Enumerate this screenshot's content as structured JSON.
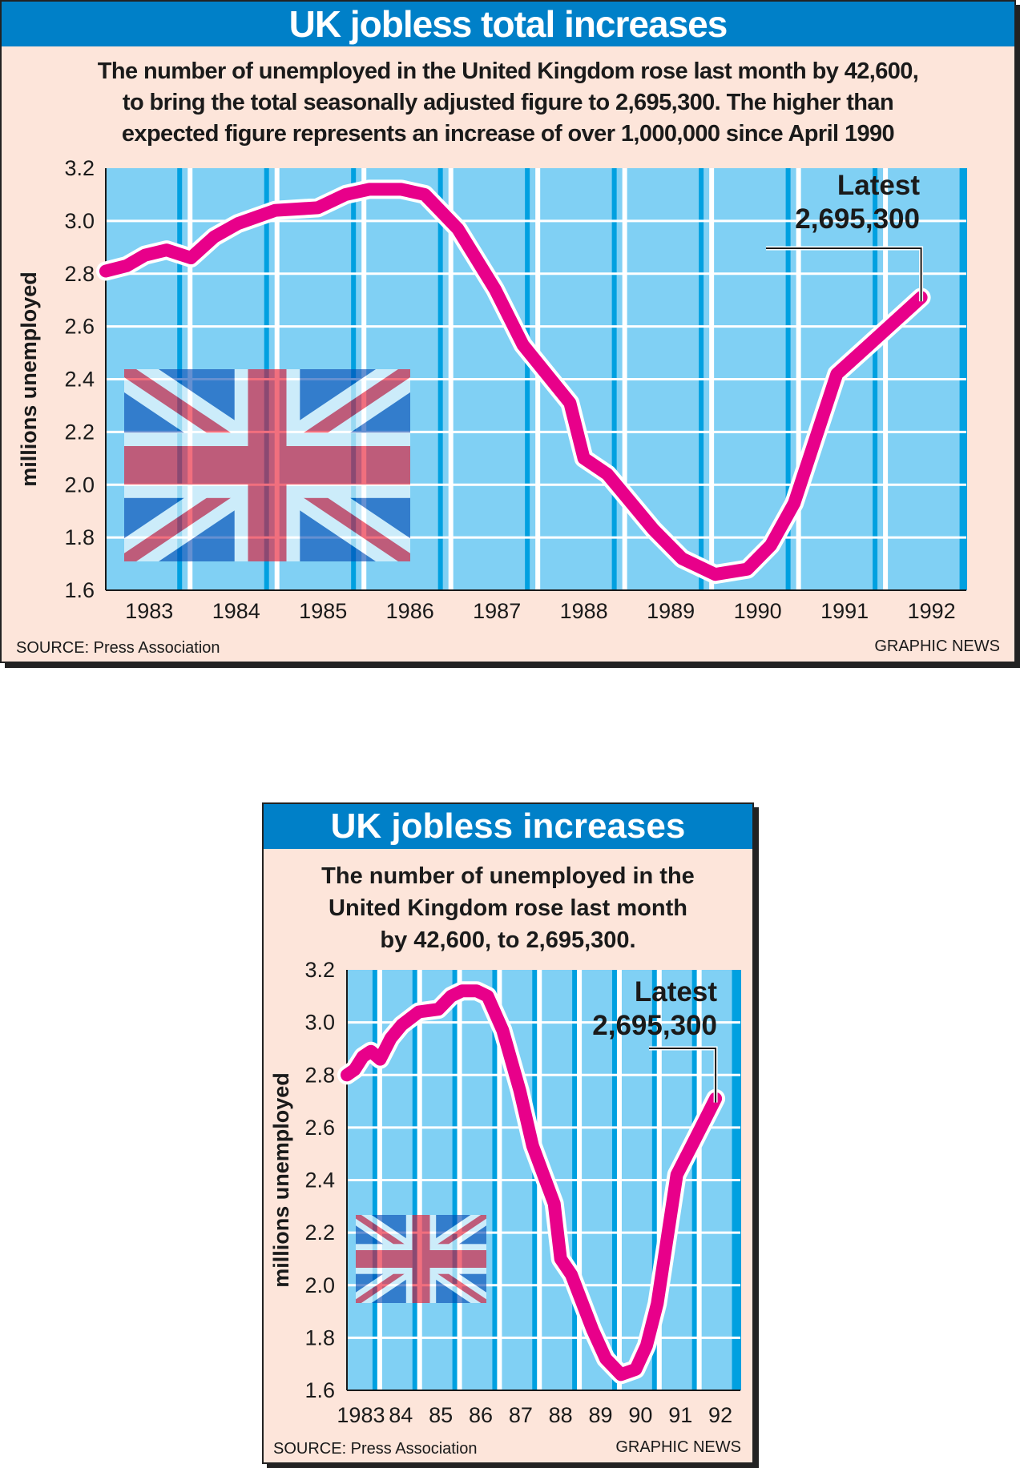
{
  "colors": {
    "background": "#fde5da",
    "title_bar": "#0080c8",
    "plot": "#80d0f4",
    "grid_dark": "#00a0e0",
    "grid_light": "#ffffff",
    "line": "#e8008a",
    "text": "#1a1a1a"
  },
  "charts": [
    {
      "title": "UK jobless total increases",
      "subtitle": [
        "The number of unemployed in the United Kingdom rose last month by 42,600,",
        "to bring the total seasonally adjusted figure to 2,695,300. The higher than",
        "expected figure represents an increase of over 1,000,000 since April 1990"
      ],
      "source": "SOURCE: Press Association",
      "credit": "GRAPHIC NEWS",
      "annotation": [
        "Latest",
        "2,695,300"
      ]
    },
    {
      "title": "UK jobless increases",
      "subtitle": [
        "The number of unemployed in the",
        "United Kingdom rose last month",
        "by 42,600, to 2,695,300."
      ],
      "source": "SOURCE: Press Association",
      "credit": "GRAPHIC NEWS",
      "annotation": [
        "Latest",
        "2,695,300"
      ]
    }
  ],
  "chart_data": [
    {
      "type": "line",
      "title": "UK jobless total increases",
      "ylabel": "millions unemployed",
      "xlabel": "",
      "ylim": [
        1.6,
        3.2
      ],
      "xlim": [
        1982.5,
        1992.4
      ],
      "yticks": [
        "1.6",
        "1.8",
        "2.0",
        "2.2",
        "2.4",
        "2.6",
        "2.8",
        "3.0",
        "3.2"
      ],
      "xticks": [
        {
          "x": 1983,
          "label": "1983"
        },
        {
          "x": 1984,
          "label": "1984"
        },
        {
          "x": 1985,
          "label": "1985"
        },
        {
          "x": 1986,
          "label": "1986"
        },
        {
          "x": 1987,
          "label": "1987"
        },
        {
          "x": 1988,
          "label": "1988"
        },
        {
          "x": 1989,
          "label": "1989"
        },
        {
          "x": 1990,
          "label": "1990"
        },
        {
          "x": 1991,
          "label": "1991"
        },
        {
          "x": 1992,
          "label": "1992"
        }
      ],
      "grid": true,
      "series": [
        {
          "name": "Unemployed (millions)",
          "x": [
            1982.5,
            1982.74,
            1982.95,
            1983.2,
            1983.48,
            1983.75,
            1984.02,
            1984.45,
            1984.94,
            1985.26,
            1985.53,
            1985.9,
            1986.17,
            1986.55,
            1986.98,
            1987.3,
            1987.84,
            1988.0,
            1988.27,
            1988.8,
            1989.13,
            1989.51,
            1989.88,
            1990.15,
            1990.42,
            1990.91,
            1991.28,
            1991.88
          ],
          "y": [
            2.81,
            2.83,
            2.87,
            2.89,
            2.86,
            2.94,
            2.99,
            3.04,
            3.05,
            3.1,
            3.12,
            3.12,
            3.1,
            2.97,
            2.74,
            2.53,
            2.31,
            2.1,
            2.04,
            1.83,
            1.72,
            1.66,
            1.68,
            1.77,
            1.93,
            2.42,
            2.53,
            2.71
          ]
        }
      ],
      "annotation": {
        "text": "Latest 2,695,300",
        "x": 1991.88,
        "y": 2.6953
      }
    },
    {
      "type": "line",
      "title": "UK jobless increases",
      "ylabel": "millions unemployed",
      "xlabel": "",
      "ylim": [
        1.6,
        3.2
      ],
      "xlim": [
        1982.65,
        1992.5
      ],
      "yticks": [
        "1.6",
        "1.8",
        "2.0",
        "2.2",
        "2.4",
        "2.6",
        "2.8",
        "3.0",
        "3.2"
      ],
      "xticks": [
        {
          "x": 1983,
          "label": "1983"
        },
        {
          "x": 1984,
          "label": "84"
        },
        {
          "x": 1985,
          "label": "85"
        },
        {
          "x": 1986,
          "label": "86"
        },
        {
          "x": 1987,
          "label": "87"
        },
        {
          "x": 1988,
          "label": "88"
        },
        {
          "x": 1989,
          "label": "89"
        },
        {
          "x": 1990,
          "label": "90"
        },
        {
          "x": 1991,
          "label": "91"
        },
        {
          "x": 1992,
          "label": "92"
        }
      ],
      "grid": true,
      "series": [
        {
          "name": "Unemployed (millions)",
          "x": [
            1982.65,
            1982.84,
            1983.05,
            1983.25,
            1983.48,
            1983.75,
            1984.02,
            1984.45,
            1984.94,
            1985.26,
            1985.53,
            1985.9,
            1986.17,
            1986.55,
            1986.98,
            1987.3,
            1987.84,
            1988.0,
            1988.27,
            1988.8,
            1989.13,
            1989.51,
            1989.88,
            1990.15,
            1990.42,
            1990.91,
            1991.28,
            1991.88
          ],
          "y": [
            2.8,
            2.82,
            2.87,
            2.89,
            2.86,
            2.94,
            2.99,
            3.04,
            3.05,
            3.1,
            3.12,
            3.12,
            3.1,
            2.97,
            2.74,
            2.53,
            2.31,
            2.1,
            2.04,
            1.83,
            1.72,
            1.66,
            1.68,
            1.77,
            1.93,
            2.42,
            2.53,
            2.71
          ]
        }
      ],
      "annotation": {
        "text": "Latest 2,695,300",
        "x": 1991.88,
        "y": 2.6953
      }
    }
  ]
}
